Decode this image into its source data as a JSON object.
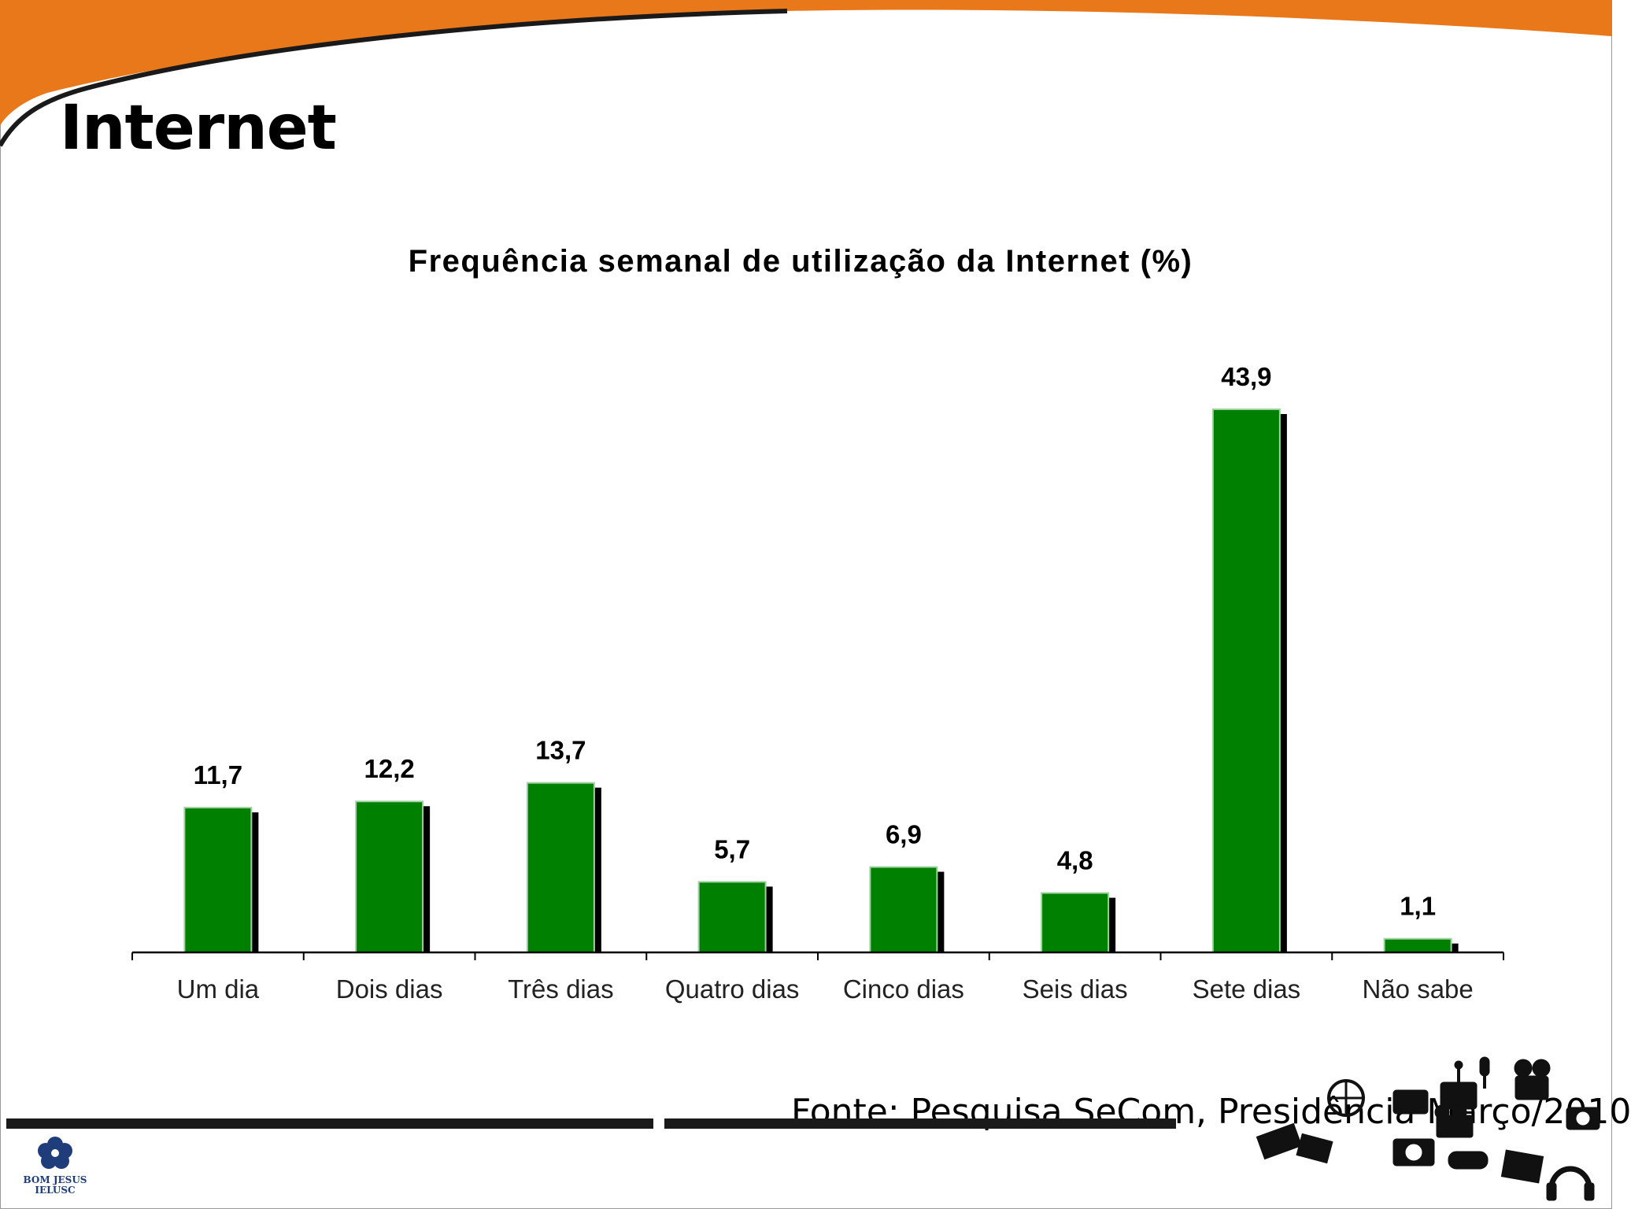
{
  "slide": {
    "title": "Internet",
    "source": "Fonte: Pesquisa SeCom, Presidência Março/2010"
  },
  "logo": {
    "line1": "BOM JESUS",
    "line2": "IELUSC",
    "icon": "flower-logo-icon"
  },
  "decoration": {
    "header_color": "#E8781A",
    "footer_icons": "media-devices-collage-icon"
  },
  "chart_data": {
    "type": "bar",
    "title": "Frequência semanal de utilização da Internet (%)",
    "categories": [
      "Um dia",
      "Dois dias",
      "Três dias",
      "Quatro dias",
      "Cinco dias",
      "Seis dias",
      "Sete dias",
      "Não sabe"
    ],
    "values": [
      11.7,
      12.2,
      13.7,
      5.7,
      6.9,
      4.8,
      43.9,
      1.1
    ],
    "data_labels": [
      "11,7",
      "12,2",
      "13,7",
      "5,7",
      "6,9",
      "4,8",
      "43,9",
      "1,1"
    ],
    "ylim": [
      0,
      43.9
    ],
    "bar_color": "#008000",
    "shadow_color": "#000000",
    "grid": false,
    "legend": "none"
  }
}
